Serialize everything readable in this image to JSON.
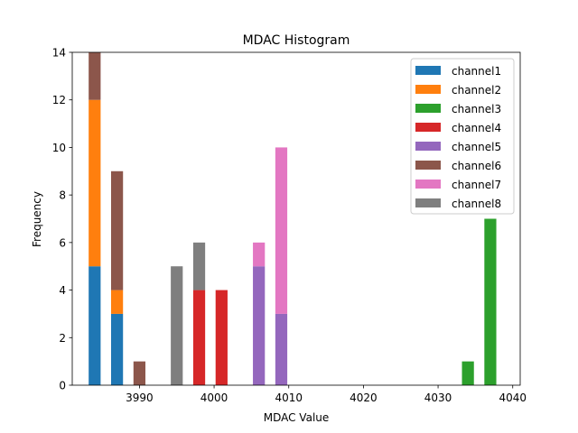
{
  "chart_data": {
    "type": "bar",
    "stacked": true,
    "title": "MDAC Histogram",
    "xlabel": "MDAC Value",
    "ylabel": "Frequency",
    "xlim": [
      3981,
      4041
    ],
    "ylim": [
      0,
      14
    ],
    "xticks": [
      3990,
      4000,
      4010,
      4020,
      4030,
      4040
    ],
    "yticks": [
      0,
      2,
      4,
      6,
      8,
      10,
      12,
      14
    ],
    "bin_width": 2.0,
    "bar_width": 1.6,
    "grid": false,
    "legend_position": "top-right",
    "series": [
      {
        "name": "channel1",
        "color": "#1f77b4",
        "bars": [
          {
            "x": 3984,
            "value": 5
          },
          {
            "x": 3987,
            "value": 3
          }
        ]
      },
      {
        "name": "channel2",
        "color": "#ff7f0e",
        "bars": [
          {
            "x": 3984,
            "value": 7
          },
          {
            "x": 3987,
            "value": 1
          }
        ]
      },
      {
        "name": "channel3",
        "color": "#2ca02c",
        "bars": [
          {
            "x": 4034,
            "value": 1
          },
          {
            "x": 4037,
            "value": 7
          }
        ]
      },
      {
        "name": "channel4",
        "color": "#d62728",
        "bars": [
          {
            "x": 3998,
            "value": 4
          },
          {
            "x": 4001,
            "value": 4
          }
        ]
      },
      {
        "name": "channel5",
        "color": "#9467bd",
        "bars": [
          {
            "x": 4006,
            "value": 5
          },
          {
            "x": 4009,
            "value": 3
          }
        ]
      },
      {
        "name": "channel6",
        "color": "#8c564b",
        "bars": [
          {
            "x": 3984,
            "value": 2
          },
          {
            "x": 3987,
            "value": 5
          },
          {
            "x": 3990,
            "value": 1
          }
        ]
      },
      {
        "name": "channel7",
        "color": "#e377c2",
        "bars": [
          {
            "x": 4006,
            "value": 1
          },
          {
            "x": 4009,
            "value": 7
          }
        ]
      },
      {
        "name": "channel8",
        "color": "#7f7f7f",
        "bars": [
          {
            "x": 3995,
            "value": 5
          },
          {
            "x": 3998,
            "value": 2
          }
        ]
      }
    ]
  }
}
